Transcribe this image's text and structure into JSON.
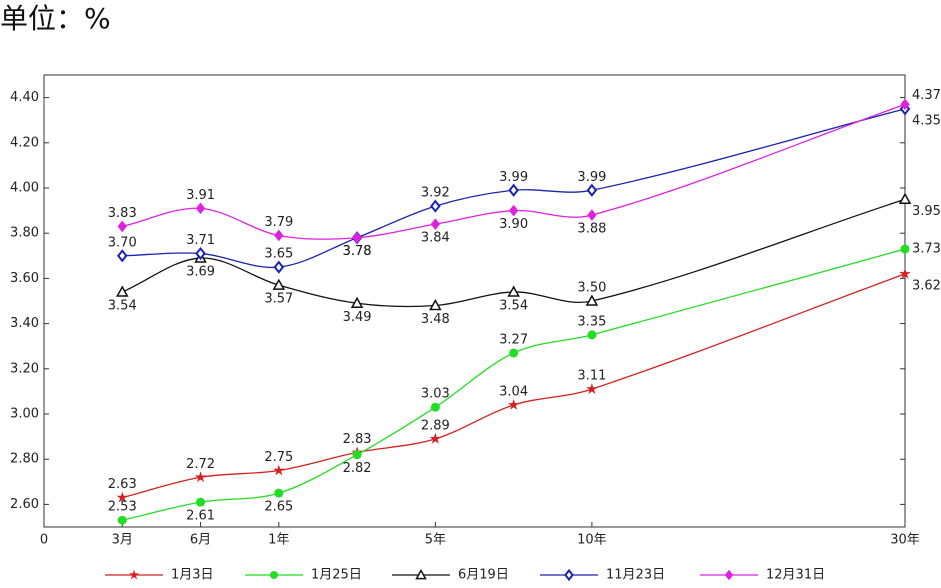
{
  "chart_data": {
    "type": "line",
    "title": "单位：%",
    "x": [
      1,
      2,
      3,
      4,
      5,
      6,
      7,
      11
    ],
    "xlim": [
      0,
      11
    ],
    "xticks": [
      0,
      {
        "value": 1,
        "label": "3月"
      },
      {
        "value": 2,
        "label": "6月"
      },
      {
        "value": 3,
        "label": "1年"
      },
      {
        "value": 5,
        "label": "5年"
      },
      {
        "value": 7,
        "label": "10年"
      },
      {
        "value": 11,
        "label": "30年"
      }
    ],
    "ylim": [
      2.5,
      4.5
    ],
    "yticks": [
      {
        "value": 2.6,
        "label": "2.60"
      },
      {
        "value": 2.8,
        "label": "2.80"
      },
      {
        "value": 3.0,
        "label": "3.00"
      },
      {
        "value": 3.2,
        "label": "3.20"
      },
      {
        "value": 3.4,
        "label": "3.40"
      },
      {
        "value": 3.6,
        "label": "3.60"
      },
      {
        "value": 3.8,
        "label": "3.80"
      },
      {
        "value": 4.0,
        "label": "4.00"
      },
      {
        "value": 4.2,
        "label": "4.20"
      },
      {
        "value": 4.4,
        "label": "4.40"
      }
    ],
    "legend": "bottom",
    "series": [
      {
        "name": "1月3日",
        "color": "#d42020",
        "marker": "star",
        "values": [
          2.63,
          2.72,
          2.75,
          2.83,
          2.89,
          3.04,
          3.11,
          3.62
        ],
        "value_labels": [
          "2.63",
          "2.72",
          "2.75",
          "2.83",
          "2.89",
          "3.04",
          "3.11",
          "3.62"
        ]
      },
      {
        "name": "1月25日",
        "color": "#22dd22",
        "marker": "circle",
        "values": [
          2.53,
          2.61,
          2.65,
          2.82,
          3.03,
          3.27,
          3.35,
          3.73
        ],
        "value_labels": [
          "2.53",
          "2.61",
          "2.65",
          "2.82",
          "3.03",
          "3.27",
          "3.35",
          "3.73"
        ]
      },
      {
        "name": "6月19日",
        "color": "#111111",
        "marker": "triangle",
        "values": [
          3.54,
          3.69,
          3.57,
          3.49,
          3.48,
          3.54,
          3.5,
          3.95
        ],
        "value_labels": [
          "3.54",
          "3.69",
          "3.57",
          "3.49",
          "3.48",
          "3.54",
          "3.50",
          "3.95"
        ]
      },
      {
        "name": "11月23日",
        "color": "#1a22b0",
        "marker": "diamond-open",
        "values": [
          3.7,
          3.71,
          3.65,
          3.78,
          3.92,
          3.99,
          3.99,
          4.35
        ],
        "value_labels": [
          "3.70",
          "3.71",
          "3.65",
          "3.78",
          "3.92",
          "3.99",
          "3.99",
          "4.35"
        ]
      },
      {
        "name": "12月31日",
        "color": "#e020e0",
        "marker": "diamond",
        "values": [
          3.83,
          3.91,
          3.79,
          3.78,
          3.84,
          3.9,
          3.88,
          4.37
        ],
        "value_labels": [
          "3.83",
          "3.91",
          "3.79",
          "3.78",
          "3.84",
          "3.90",
          "3.88",
          "4.37"
        ]
      }
    ]
  }
}
